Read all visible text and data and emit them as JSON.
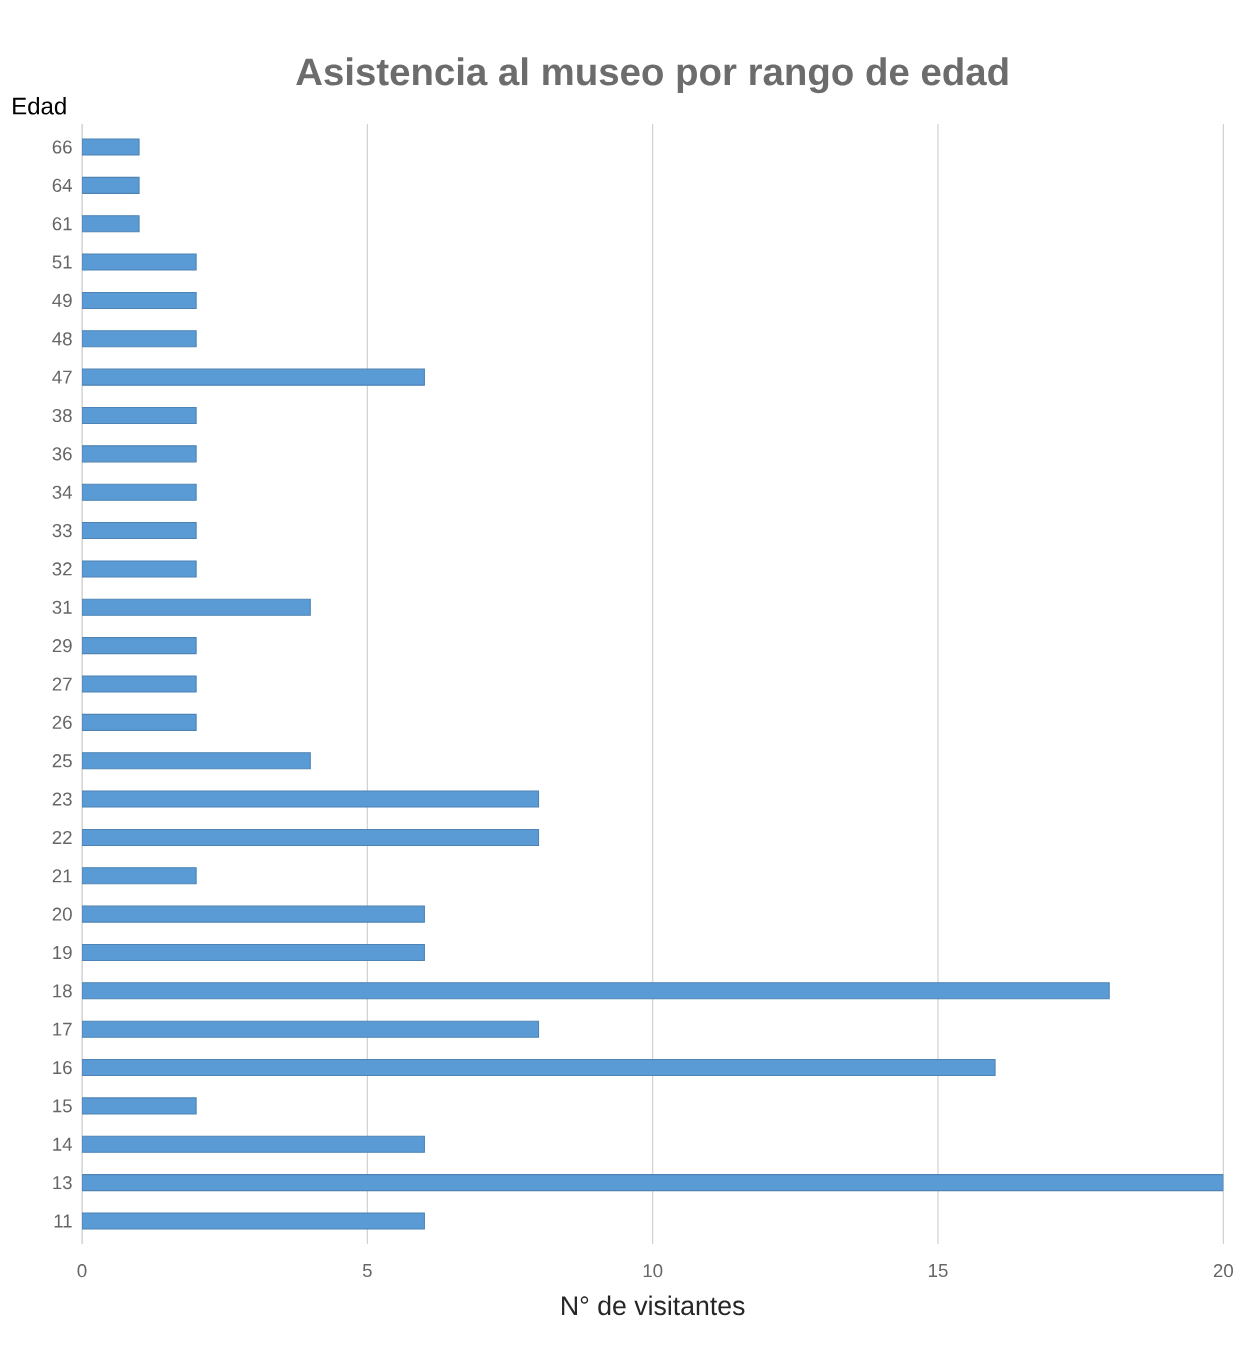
{
  "chart_data": {
    "type": "bar",
    "orientation": "horizontal",
    "title": "Asistencia al museo por rango de edad",
    "xlabel": "N° de visitantes",
    "ylabel": "Edad",
    "categories": [
      "66",
      "64",
      "61",
      "51",
      "49",
      "48",
      "47",
      "38",
      "36",
      "34",
      "33",
      "32",
      "31",
      "29",
      "27",
      "26",
      "25",
      "23",
      "22",
      "21",
      "20",
      "19",
      "18",
      "17",
      "16",
      "15",
      "14",
      "13",
      "11"
    ],
    "values": [
      1,
      1,
      1,
      2,
      2,
      2,
      6,
      2,
      2,
      2,
      2,
      2,
      4,
      2,
      2,
      2,
      4,
      8,
      8,
      2,
      6,
      6,
      18,
      8,
      16,
      2,
      6,
      20,
      6
    ],
    "color": "#5b9bd5",
    "xlim": [
      0,
      20
    ],
    "xticks": [
      0,
      5,
      10,
      15,
      20
    ],
    "grid": "x"
  }
}
